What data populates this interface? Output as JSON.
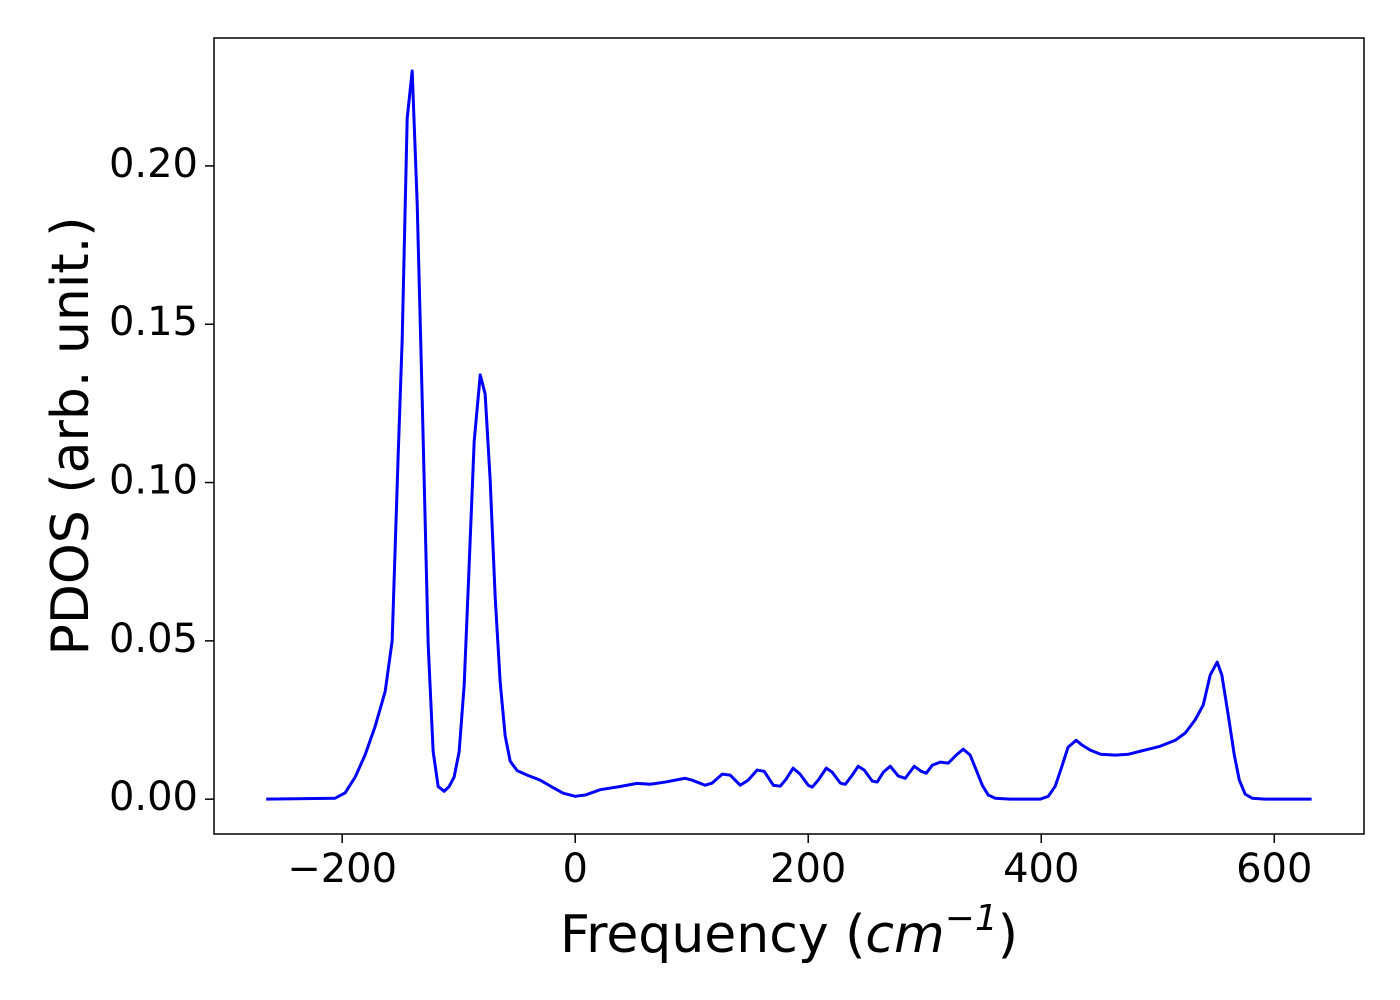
{
  "chart_data": {
    "type": "line",
    "x_label": [
      "Frequency (",
      "cm",
      "−1",
      ")"
    ],
    "y_label": "PDOS (arb. unit.)",
    "xlim": [
      -310,
      677
    ],
    "ylim": [
      -0.011,
      0.2404
    ],
    "xticks": [
      {
        "value": -200,
        "label": "−200"
      },
      0,
      200,
      400,
      600
    ],
    "yticks": [
      {
        "value": 0,
        "label": "0.00"
      },
      {
        "value": 0.05,
        "label": "0.05"
      },
      {
        "value": 0.1,
        "label": "0.10"
      },
      {
        "value": 0.15,
        "label": "0.15"
      },
      {
        "value": 0.2,
        "label": "0.20"
      }
    ],
    "series": [
      {
        "color": "#0000ff",
        "x": [
          -265.2,
          -206,
          -197.4,
          -188.8,
          -180.3,
          -171.7,
          -163.1,
          -157.1,
          -151.9,
          -148.5,
          -144.2,
          -139.9,
          -135.6,
          -131.3,
          -126.2,
          -121.9,
          -117.6,
          -112.4,
          -108.2,
          -103.9,
          -99.6,
          -95.3,
          -91.0,
          -86.7,
          -81.5,
          -77.3,
          -73.0,
          -68.7,
          -64.4,
          -60.1,
          -55.8,
          -49.8,
          -41.2,
          -30.0,
          -19.7,
          -10.3,
          0,
          8.6,
          21.5,
          38.6,
          53.2,
          64.4,
          77.3,
          94.4,
          100.4,
          111.6,
          117.6,
          126.2,
          133,
          141.6,
          148.5,
          156.2,
          162.2,
          170,
          176,
          181,
          187,
          193,
          200,
          203.4,
          208.6,
          215.5,
          220.6,
          227.5,
          231.8,
          237.8,
          242.9,
          248,
          255,
          259.2,
          264.4,
          270.4,
          277.3,
          283.3,
          291,
          297,
          301.3,
          306.4,
          313.3,
          320.2,
          327,
          333,
          339,
          344.2,
          349.4,
          354.5,
          360.5,
          373.4,
          399,
          406,
          412,
          418,
          423,
          430,
          435,
          442,
          451,
          463.5,
          475,
          489,
          502,
          515,
          523.6,
          532,
          539,
          545,
          551,
          555,
          560.5,
          565.7,
          570,
          575,
          581,
          592,
          632
        ],
        "values": [
          0,
          0.0003,
          0.002,
          0.007,
          0.014,
          0.023,
          0.034,
          0.05,
          0.109,
          0.145,
          0.215,
          0.23,
          0.188,
          0.126,
          0.049,
          0.015,
          0.004,
          0.0025,
          0.004,
          0.007,
          0.015,
          0.036,
          0.074,
          0.113,
          0.134,
          0.128,
          0.101,
          0.064,
          0.037,
          0.02,
          0.012,
          0.009,
          0.0076,
          0.006,
          0.0038,
          0.0019,
          0.0009,
          0.0013,
          0.003,
          0.004,
          0.005,
          0.0047,
          0.0054,
          0.0066,
          0.006,
          0.0044,
          0.0051,
          0.0079,
          0.0076,
          0.0044,
          0.006,
          0.0092,
          0.0088,
          0.0044,
          0.0041,
          0.0063,
          0.0098,
          0.0079,
          0.0044,
          0.0038,
          0.006,
          0.0098,
          0.0085,
          0.0051,
          0.0047,
          0.0076,
          0.0104,
          0.0092,
          0.0057,
          0.0054,
          0.0085,
          0.0104,
          0.0073,
          0.0066,
          0.0104,
          0.0088,
          0.0082,
          0.0107,
          0.0117,
          0.0114,
          0.0139,
          0.0158,
          0.0139,
          0.0092,
          0.0044,
          0.0013,
          0.0003,
          0,
          0,
          0.0009,
          0.0041,
          0.0107,
          0.0164,
          0.0186,
          0.0171,
          0.0155,
          0.0142,
          0.0139,
          0.0142,
          0.0155,
          0.0167,
          0.0186,
          0.0209,
          0.025,
          0.0297,
          0.0392,
          0.0433,
          0.0392,
          0.0265,
          0.0139,
          0.006,
          0.0016,
          0.0003,
          0,
          0
        ]
      }
    ]
  }
}
